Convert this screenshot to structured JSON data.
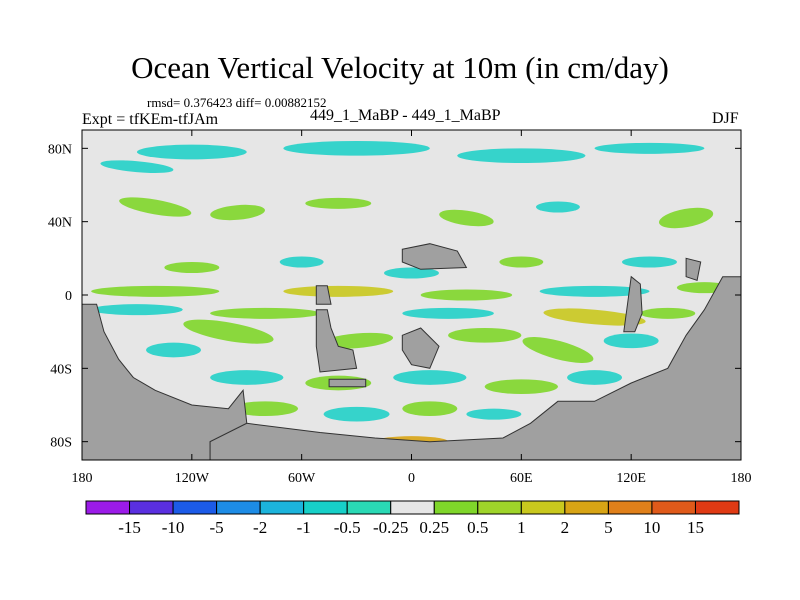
{
  "chart_data": {
    "type": "heatmap",
    "title": "Ocean Vertical Velocity at 10m (in cm/day)",
    "subtitle": "rmsd= 0.376423 diff= 0.00882152",
    "left_label": "Expt = tfKEm-tfJAm",
    "center_label": "449_1_MaBP - 449_1_MaBP",
    "right_label": "DJF",
    "x_ticks": [
      "180",
      "120W",
      "60W",
      "0",
      "60E",
      "120E",
      "180"
    ],
    "y_ticks": [
      "80N",
      "40N",
      "0",
      "40S",
      "80S"
    ],
    "xlim": [
      -180,
      180
    ],
    "ylim": [
      -90,
      90
    ],
    "colorbar": {
      "labels": [
        "-15",
        "-10",
        "-5",
        "-2",
        "-1",
        "-0.5",
        "-0.25",
        "0.25",
        "0.5",
        "1",
        "2",
        "5",
        "10",
        "15"
      ],
      "colors": [
        "#9b1be8",
        "#5a2fe0",
        "#1c5be8",
        "#1d8ce6",
        "#1cb4dc",
        "#17d0c8",
        "#2ad9b5",
        "#e6e6e6",
        "#7fd62a",
        "#9fd42a",
        "#c9c81e",
        "#d8a415",
        "#e0801a",
        "#e05a1a",
        "#e03a14"
      ]
    },
    "colors": {
      "land": "#a0a0a0",
      "neutral": "#e6e6e6",
      "cyan": "#22d0c8",
      "green": "#7fd62a",
      "olive": "#c9c81e",
      "blue": "#1d8ce6",
      "orange": "#d8a415"
    }
  }
}
